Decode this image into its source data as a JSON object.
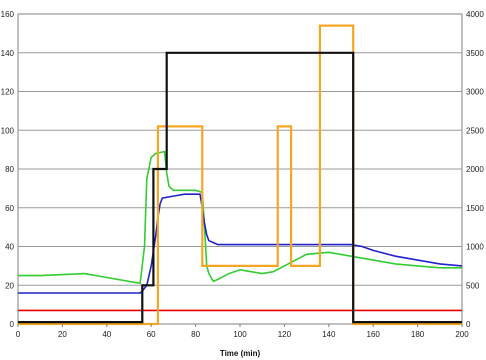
{
  "chart_data": {
    "type": "line",
    "title": "",
    "xlabel": "Time (min)",
    "ylabel": "",
    "xlim": [
      0,
      200
    ],
    "ylim": [
      0,
      160
    ],
    "y2lim": [
      0,
      4000
    ],
    "x_ticks": [
      "0",
      "20",
      "40",
      "60",
      "80",
      "100",
      "120",
      "140",
      "160",
      "180",
      "200"
    ],
    "y_ticks": [
      "0",
      "20",
      "40",
      "60",
      "80",
      "100",
      "120",
      "140",
      "160"
    ],
    "y2_ticks": [
      "0",
      "500",
      "1000",
      "1500",
      "2000",
      "2500",
      "3000",
      "3500",
      "4000"
    ],
    "grid": "horizontal",
    "series": [
      {
        "color": "#33cc33",
        "axis": "left",
        "x": [
          0,
          10,
          20,
          30,
          40,
          50,
          55,
          57,
          58,
          60,
          62,
          64,
          66,
          67,
          68,
          70,
          75,
          80,
          83,
          84,
          85,
          86,
          88,
          90,
          95,
          100,
          105,
          110,
          115,
          120,
          125,
          130,
          140,
          150,
          160,
          170,
          180,
          190,
          200
        ],
        "y": [
          25,
          25,
          25.5,
          26,
          24,
          22,
          21,
          40,
          75,
          86,
          88,
          88.5,
          89,
          78,
          71,
          69,
          69,
          69,
          68,
          50,
          30,
          26,
          22,
          23,
          26,
          28,
          27,
          26,
          27,
          30,
          33,
          36,
          37,
          35,
          33,
          31,
          30,
          29,
          29
        ]
      },
      {
        "color": "#2222cc",
        "axis": "left",
        "x": [
          0,
          20,
          40,
          55,
          56,
          58,
          60,
          62,
          63,
          64,
          65,
          70,
          75,
          80,
          82,
          83,
          84,
          85,
          86,
          88,
          90,
          100,
          110,
          120,
          130,
          140,
          150,
          155,
          160,
          170,
          180,
          190,
          200
        ],
        "y": [
          16,
          16,
          16,
          16,
          17,
          20,
          30,
          45,
          55,
          62,
          65,
          66,
          67,
          67,
          67,
          60,
          52,
          46,
          43,
          42,
          41,
          41,
          41,
          41,
          41,
          41,
          41,
          40,
          38,
          35,
          33,
          31,
          30
        ]
      },
      {
        "color": "#ee0000",
        "axis": "left",
        "x": [
          0,
          200
        ],
        "y": [
          7,
          7
        ]
      },
      {
        "color": "#f5a623",
        "axis": "right",
        "x": [
          0,
          63,
          63,
          83,
          83,
          117,
          117,
          123,
          123,
          136,
          136,
          151,
          151,
          200
        ],
        "y": [
          0,
          0,
          2550,
          2550,
          750,
          750,
          2550,
          2550,
          750,
          750,
          3850,
          3850,
          0,
          0
        ]
      },
      {
        "color": "#111111",
        "axis": "left",
        "x": [
          0,
          56,
          56,
          61,
          61,
          67,
          67,
          151,
          151,
          200
        ],
        "y": [
          1,
          1,
          20,
          20,
          80,
          80,
          140,
          140,
          1,
          1
        ]
      }
    ]
  }
}
